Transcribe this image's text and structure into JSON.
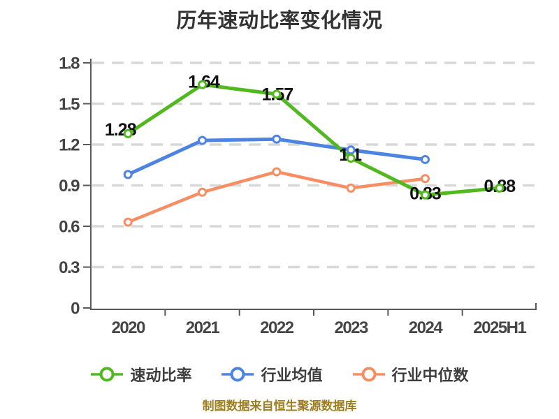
{
  "title": "历年速动比率变化情况",
  "footer": "制图数据来自恒生聚源数据库",
  "colors": {
    "background": "#ffffff",
    "title_text": "#333333",
    "axis": "#58585a",
    "tick_label": "#454545",
    "gridline": "#d8d8d8",
    "data_label": "#111111",
    "legend_text": "#3d3d3d",
    "footer_text": "#9d7d1e",
    "quick_ratio": "#51b81f",
    "industry_avg": "#4d84e2",
    "industry_median": "#f78e63"
  },
  "chart_data": {
    "type": "line",
    "title": "历年速动比率变化情况",
    "categories": [
      "2020",
      "2021",
      "2022",
      "2023",
      "2024",
      "2025H1"
    ],
    "series": [
      {
        "name": "速动比率",
        "color": "#51b81f",
        "values": [
          1.28,
          1.64,
          1.57,
          1.1,
          0.83,
          0.88
        ],
        "point_labels": [
          "1.28",
          "1.64",
          "1.57",
          "1.1",
          "0.83",
          "0.88"
        ]
      },
      {
        "name": "行业均值",
        "color": "#4d84e2",
        "values": [
          0.98,
          1.23,
          1.24,
          1.16,
          1.09,
          null
        ],
        "point_labels": []
      },
      {
        "name": "行业中位数",
        "color": "#f78e63",
        "values": [
          0.63,
          0.85,
          1.0,
          0.88,
          0.95,
          null
        ],
        "point_labels": []
      }
    ],
    "ylim": [
      0,
      1.8
    ],
    "ytick_step": 0.3,
    "ytick_labels": [
      "0",
      "0.3",
      "0.6",
      "0.9",
      "1.2",
      "1.5",
      "1.8"
    ],
    "grid": "horizontal-dashed",
    "legend_position": "bottom",
    "marker": "circle-white-fill"
  }
}
